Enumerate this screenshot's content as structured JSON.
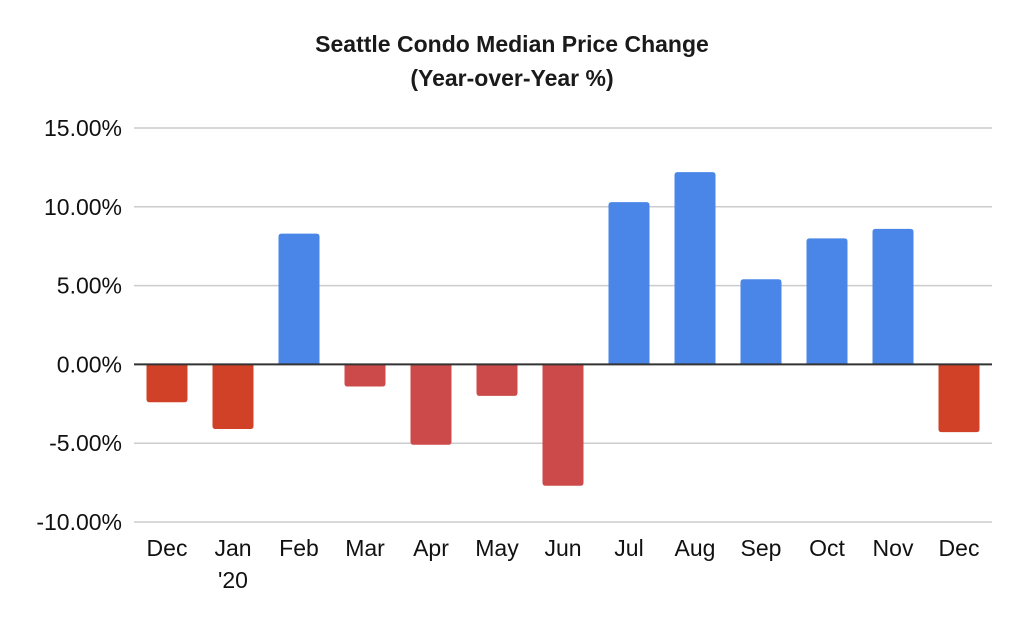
{
  "chart_data": {
    "type": "bar",
    "title": "Seattle Condo Median Price Change",
    "subtitle": "(Year-over-Year %)",
    "categories": [
      "Dec",
      "Jan\n'20",
      "Feb",
      "Mar",
      "Apr",
      "May",
      "Jun",
      "Jul",
      "Aug",
      "Sep",
      "Oct",
      "Nov",
      "Dec"
    ],
    "values": [
      -2.4,
      -4.1,
      8.3,
      -1.4,
      -5.1,
      -2.0,
      -7.7,
      10.3,
      12.2,
      5.4,
      8.0,
      8.6,
      -4.3
    ],
    "bar_colors": [
      "#d04127",
      "#d04127",
      "#4a86e8",
      "#cc4a4a",
      "#cc4a4a",
      "#cc4a4a",
      "#cc4a4a",
      "#4a86e8",
      "#4a86e8",
      "#4a86e8",
      "#4a86e8",
      "#4a86e8",
      "#d04127"
    ],
    "ylim": [
      -10,
      15
    ],
    "yticks": [
      15,
      10,
      5,
      0,
      -5,
      -10
    ],
    "ytick_labels": [
      "15.00%",
      "10.00%",
      "5.00%",
      "0.00%",
      "-5.00%",
      "-10.00%"
    ],
    "xlabel": "",
    "ylabel": "",
    "grid": true,
    "legend": "none",
    "colors": {
      "positive": "#4a86e8",
      "negative_dark": "#d04127",
      "negative_muted": "#cc4a4a",
      "gridline": "#cccccc",
      "zero_line": "#333333"
    }
  }
}
